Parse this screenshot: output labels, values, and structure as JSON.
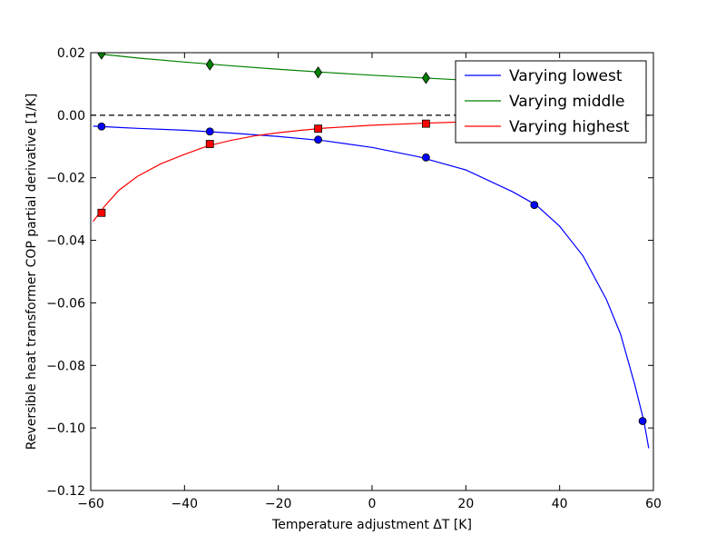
{
  "chart_data": {
    "type": "line",
    "xlabel": "Temperature adjustment ΔT [K]",
    "ylabel": "Reversible heat transformer COP partial derivative [1/K]",
    "xlim": [
      -60,
      60
    ],
    "ylim": [
      -0.12,
      0.02
    ],
    "x_ticks": [
      -60,
      -40,
      -20,
      0,
      20,
      40,
      60
    ],
    "x_tick_labels": [
      "−60",
      "−40",
      "−20",
      "0",
      "20",
      "40",
      "60"
    ],
    "y_ticks": [
      0.02,
      0.0,
      -0.02,
      -0.04,
      -0.06,
      -0.08,
      -0.1,
      -0.12
    ],
    "y_tick_labels": [
      "0.02",
      "0.00",
      "−0.02",
      "−0.04",
      "−0.06",
      "−0.08",
      "−0.10",
      "−0.12"
    ],
    "reference_line": {
      "y": 0,
      "style": "dashed",
      "color": "#000000"
    },
    "legend_position": "top-right",
    "grid": false,
    "series": [
      {
        "name": "Varying lowest",
        "color": "#0000ff",
        "marker": "circle",
        "curve": [
          [
            -59.5,
            -0.0035
          ],
          [
            -50,
            -0.0042
          ],
          [
            -40,
            -0.0048
          ],
          [
            -30,
            -0.0057
          ],
          [
            -20,
            -0.0068
          ],
          [
            -10,
            -0.0082
          ],
          [
            0,
            -0.0103
          ],
          [
            10,
            -0.0133
          ],
          [
            20,
            -0.0175
          ],
          [
            30,
            -0.0245
          ],
          [
            35,
            -0.0287
          ],
          [
            40,
            -0.0355
          ],
          [
            45,
            -0.045
          ],
          [
            50,
            -0.059
          ],
          [
            53,
            -0.07
          ],
          [
            56,
            -0.086
          ],
          [
            58,
            -0.098
          ],
          [
            59,
            -0.1065
          ]
        ],
        "points": [
          [
            -57.7,
            -0.0036
          ],
          [
            -34.6,
            -0.0052
          ],
          [
            -11.5,
            -0.0078
          ],
          [
            11.5,
            -0.0135
          ],
          [
            34.6,
            -0.0287
          ],
          [
            57.7,
            -0.0978
          ]
        ]
      },
      {
        "name": "Varying middle",
        "color": "#008000",
        "marker": "diamond",
        "curve": [
          [
            -57.7,
            0.0195
          ],
          [
            -50,
            0.0183
          ],
          [
            -40,
            0.017
          ],
          [
            -30,
            0.0158
          ],
          [
            -20,
            0.0147
          ],
          [
            -10,
            0.0137
          ],
          [
            0,
            0.0128
          ],
          [
            10,
            0.012
          ],
          [
            20,
            0.0112
          ],
          [
            30,
            0.0105
          ],
          [
            40,
            0.01
          ],
          [
            50,
            0.0095
          ],
          [
            57.7,
            0.0092
          ]
        ],
        "points": [
          [
            -57.7,
            0.0197
          ],
          [
            -34.6,
            0.0162
          ],
          [
            -11.5,
            0.0137
          ],
          [
            11.5,
            0.0119
          ],
          [
            34.6,
            0.0104
          ],
          [
            57.7,
            0.0092
          ]
        ]
      },
      {
        "name": "Varying highest",
        "color": "#ff0000",
        "marker": "square",
        "curve": [
          [
            -59.5,
            -0.034
          ],
          [
            -57,
            -0.029
          ],
          [
            -54,
            -0.024
          ],
          [
            -50,
            -0.0195
          ],
          [
            -45,
            -0.0155
          ],
          [
            -40,
            -0.0125
          ],
          [
            -35,
            -0.0098
          ],
          [
            -30,
            -0.008
          ],
          [
            -25,
            -0.0066
          ],
          [
            -20,
            -0.0056
          ],
          [
            -15,
            -0.0048
          ],
          [
            -10,
            -0.0041
          ],
          [
            0,
            -0.0032
          ],
          [
            10,
            -0.0026
          ],
          [
            20,
            -0.0021
          ],
          [
            30,
            -0.0018
          ],
          [
            40,
            -0.0015
          ],
          [
            50,
            -0.0013
          ],
          [
            57.7,
            -0.0012
          ]
        ],
        "points": [
          [
            -57.7,
            -0.0312
          ],
          [
            -34.6,
            -0.0092
          ],
          [
            -11.5,
            -0.0043
          ],
          [
            11.5,
            -0.0027
          ],
          [
            34.6,
            -0.0018
          ],
          [
            57.7,
            -0.0012
          ]
        ]
      }
    ]
  }
}
